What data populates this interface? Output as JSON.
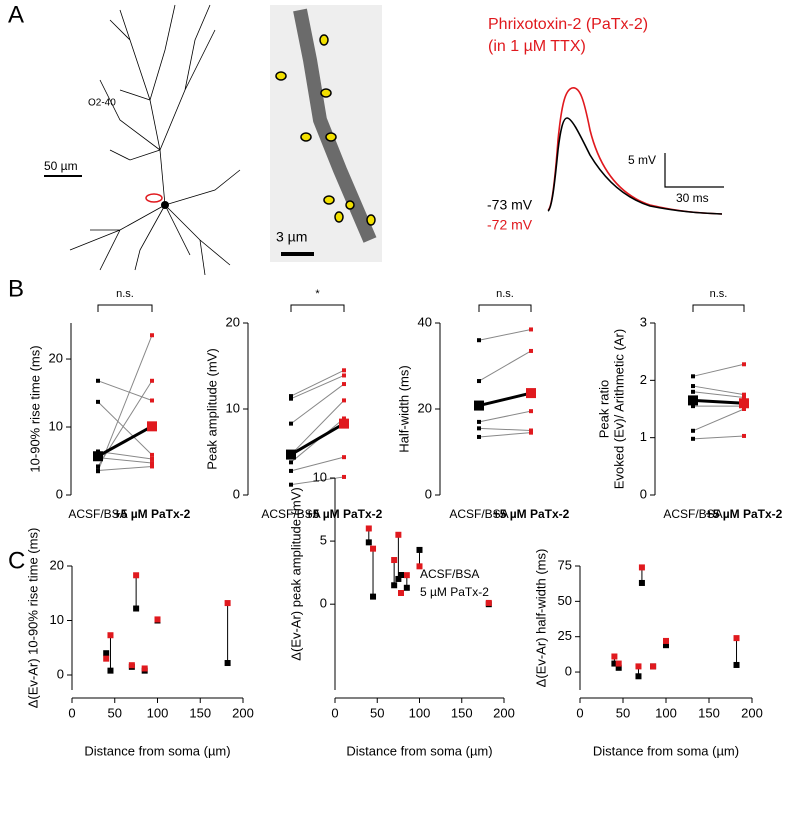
{
  "panel_labels": [
    "A",
    "B",
    "C"
  ],
  "panel_a": {
    "cell_name": "O2-40",
    "scale_neuron": "50 µm",
    "scale_image": "3 µm",
    "drug": "Phrixotoxin-2 (PaTx-2)",
    "condition": "(in 1 µM TTX)",
    "scale_v": "5 mV",
    "scale_t": "30 ms",
    "vm_control": "-73 mV",
    "vm_drug": "-72 mV"
  },
  "chart_data": [
    {
      "type": "paired",
      "categories": [
        "ACSF/BSA",
        "+5 µM PaTx-2"
      ],
      "colors": [
        "#000000",
        "#e0191e"
      ],
      "ylabel": "10-90% rise time (ms)",
      "ylim": [
        0,
        25.3
      ],
      "yticks": [
        0,
        10,
        20
      ],
      "significance": "n.s.",
      "pairs": [
        [
          3.5,
          23.5
        ],
        [
          4.2,
          16.8
        ],
        [
          16.8,
          13.9
        ],
        [
          13.7,
          5.9
        ],
        [
          6.4,
          5.3
        ],
        [
          5.5,
          4.7
        ],
        [
          3.6,
          4.2
        ]
      ],
      "mean": [
        5.7,
        10.1
      ]
    },
    {
      "type": "paired",
      "categories": [
        "ACSF/BSA",
        "+5 µM PaTx-2"
      ],
      "colors": [
        "#000000",
        "#e0191e"
      ],
      "ylabel": "Peak amplitude (mV)",
      "ylim": [
        0,
        20
      ],
      "yticks": [
        0,
        10,
        20
      ],
      "significance": "*",
      "pairs": [
        [
          11.5,
          14.5
        ],
        [
          11.2,
          13.9
        ],
        [
          8.3,
          12.9
        ],
        [
          4.7,
          11.0
        ],
        [
          3.8,
          8.9
        ],
        [
          2.8,
          4.4
        ],
        [
          1.2,
          2.1
        ]
      ],
      "mean": [
        4.7,
        8.3
      ]
    },
    {
      "type": "paired",
      "categories": [
        "ACSF/BSA",
        "+5 µM PaTx-2"
      ],
      "colors": [
        "#000000",
        "#e0191e"
      ],
      "ylabel": "Half-width (ms)",
      "ylim": [
        0,
        40
      ],
      "yticks": [
        0,
        20,
        40
      ],
      "significance": "n.s.",
      "pairs": [
        [
          36,
          38.5
        ],
        [
          26.5,
          33.5
        ],
        [
          20.8,
          23.5
        ],
        [
          17,
          19.5
        ],
        [
          15.5,
          15
        ],
        [
          13.5,
          14.5
        ]
      ],
      "mean": [
        20.8,
        23.7
      ]
    },
    {
      "type": "paired",
      "categories": [
        "ACSF/BSA",
        "+5 µM PaTx-2"
      ],
      "colors": [
        "#000000",
        "#e0191e"
      ],
      "ylabel": [
        "Peak ratio",
        "Evoked (Ev)/ Arithmetic (Ar)"
      ],
      "ylim": [
        0,
        3
      ],
      "yticks": [
        0,
        1,
        2,
        3
      ],
      "significance": "n.s.",
      "pairs": [
        [
          2.07,
          2.28
        ],
        [
          1.9,
          1.75
        ],
        [
          1.8,
          1.7
        ],
        [
          1.65,
          1.6
        ],
        [
          1.55,
          1.55
        ],
        [
          1.12,
          1.5
        ],
        [
          0.98,
          1.03
        ]
      ],
      "mean": [
        1.65,
        1.6
      ]
    },
    {
      "type": "scatter",
      "ylabel": "Δ(Ev-Ar) 10-90% rise time (ms)",
      "xlabel": "Distance from soma (µm)",
      "xlim": [
        0,
        200
      ],
      "xticks": [
        0,
        50,
        100,
        150,
        200
      ],
      "ylim": [
        -2.75,
        20
      ],
      "yticks": [
        0,
        10,
        20
      ],
      "x": [
        40,
        45,
        70,
        75,
        85,
        100,
        182
      ],
      "series": [
        {
          "color": "#000000",
          "values": [
            4.0,
            0.8,
            1.5,
            12.2,
            0.8,
            10.0,
            2.2
          ]
        },
        {
          "color": "#e0191e",
          "values": [
            3.0,
            7.3,
            1.8,
            18.3,
            1.2,
            10.2,
            13.2
          ]
        }
      ]
    },
    {
      "type": "scatter",
      "ylabel": "Δ(Ev-Ar) peak amplitude (mV)",
      "xlabel": "Distance from soma (µm)",
      "xlim": [
        0,
        200
      ],
      "xticks": [
        0,
        50,
        100,
        150,
        200
      ],
      "ylim": [
        -6.8,
        10
      ],
      "yticks": [
        0,
        5,
        10
      ],
      "legend": "top",
      "x": [
        40,
        45,
        70,
        75,
        85,
        100,
        182
      ],
      "series": [
        {
          "name": "ACSF/BSA",
          "color": "#000000",
          "values": [
            4.9,
            0.6,
            1.5,
            2.0,
            1.3,
            4.3,
            0.0
          ]
        },
        {
          "name": "5 µM PaTx-2",
          "color": "#e0191e",
          "values": [
            6.0,
            4.4,
            3.5,
            5.5,
            2.3,
            3.0,
            0.1
          ]
        }
      ]
    },
    {
      "type": "scatter",
      "ylabel": "Δ(Ev-Ar) half-width (ms)",
      "xlabel": "Distance from soma (µm)",
      "xlim": [
        0,
        200
      ],
      "xticks": [
        0,
        50,
        100,
        150,
        200
      ],
      "ylim": [
        -12.7,
        75
      ],
      "yticks": [
        0,
        25,
        50,
        75
      ],
      "x": [
        40,
        45,
        68,
        72,
        85,
        100,
        182
      ],
      "series": [
        {
          "color": "#000000",
          "values": [
            6,
            3,
            -3,
            63,
            4,
            19,
            5
          ]
        },
        {
          "color": "#e0191e",
          "values": [
            11,
            6,
            4,
            74,
            4,
            22,
            24
          ]
        }
      ]
    }
  ]
}
